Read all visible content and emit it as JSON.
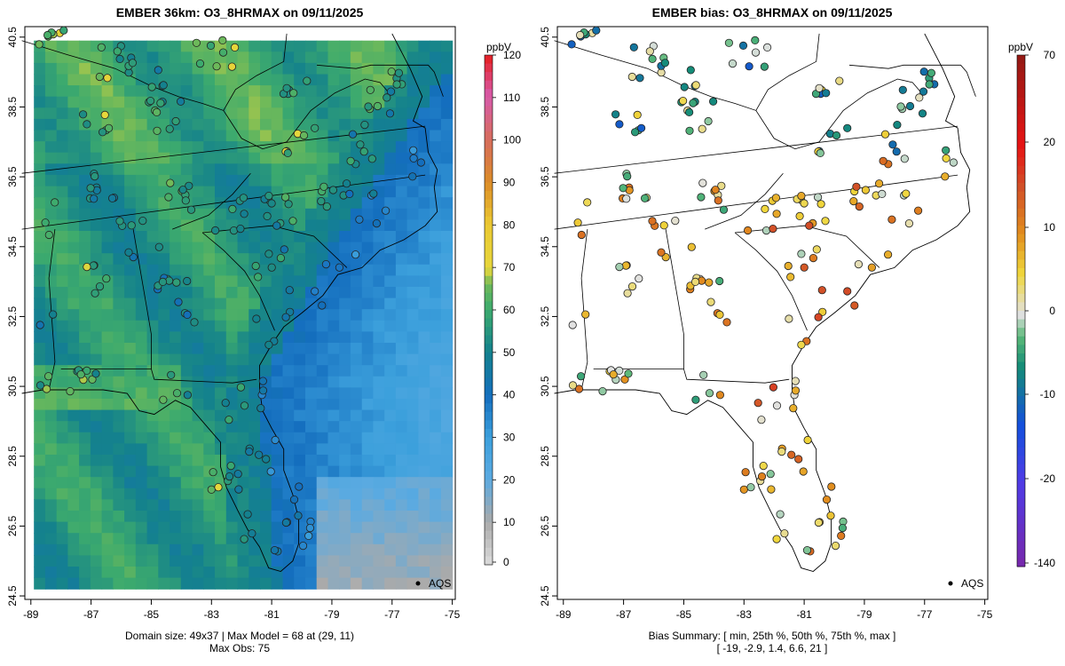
{
  "left": {
    "title": "EMBER 36km: O3_8HRMAX on 09/11/2025",
    "caption_line1": "Domain size: 49x37 | Max Model = 68 at (29, 11)",
    "caption_line2": "Max Obs: 75",
    "colorbar_unit": "ppbV",
    "colorbar_ticks": [
      "0",
      "10",
      "20",
      "30",
      "40",
      "50",
      "60",
      "70",
      "80",
      "90",
      "100",
      "110",
      "120"
    ],
    "colorbar_range": [
      0,
      120
    ],
    "legend_label": "AQS"
  },
  "right": {
    "title": "EMBER bias: O3_8HRMAX on 09/11/2025",
    "caption_line1": "Bias Summary: [ min, 25th %, 50th %, 75th %, max ]",
    "caption_line2": "[ -19,   -2.9,   1.4,   6.6,   21 ]",
    "colorbar_unit": "ppbV",
    "colorbar_ticks": [
      "-140",
      "-20",
      "-10",
      "0",
      "10",
      "20",
      "70"
    ],
    "legend_label": "AQS"
  },
  "map": {
    "lon_ticks": [
      "-89",
      "-87",
      "-85",
      "-83",
      "-81",
      "-79",
      "-77",
      "-75"
    ],
    "lat_ticks": [
      "24.5",
      "26.5",
      "28.5",
      "30.5",
      "32.5",
      "34.5",
      "36.5",
      "38.5",
      "40.5"
    ],
    "lon_range": [
      -89.2,
      -74.9
    ],
    "lat_range": [
      24.4,
      40.8
    ]
  },
  "colors": {
    "sites_left_gray_fill": "#cccccc",
    "ocean_blue": "#3399dd",
    "land_green": "#33aa66"
  }
}
